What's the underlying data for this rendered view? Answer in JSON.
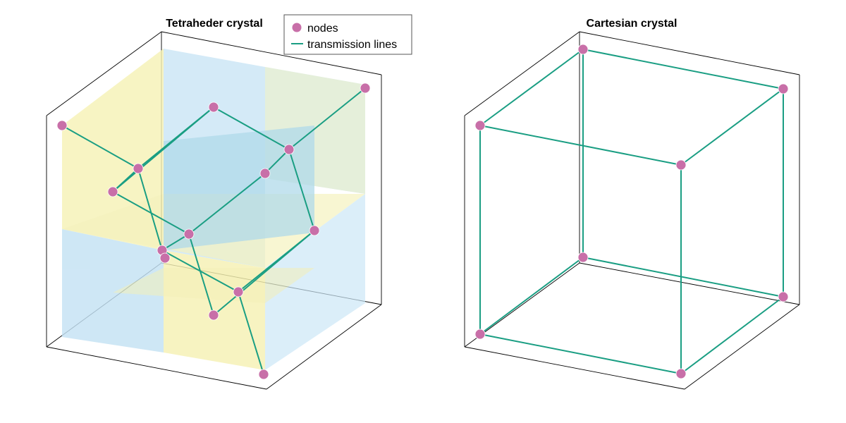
{
  "panels": [
    {
      "title": "Tetraheder crystal",
      "edges": [
        [
          0,
          1
        ],
        [
          1,
          2
        ],
        [
          2,
          3
        ],
        [
          0,
          7
        ],
        [
          1,
          6
        ],
        [
          2,
          9
        ],
        [
          3,
          4
        ],
        [
          4,
          5
        ],
        [
          5,
          6
        ],
        [
          5,
          11
        ],
        [
          6,
          7
        ],
        [
          7,
          8
        ],
        [
          8,
          9
        ],
        [
          9,
          10
        ],
        [
          10,
          11
        ],
        [
          11,
          12
        ],
        [
          12,
          13
        ],
        [
          10,
          14
        ],
        [
          13,
          14
        ],
        [
          8,
          15
        ],
        [
          6,
          16
        ],
        [
          15,
          16
        ]
      ]
    },
    {
      "title": "Cartesian crystal",
      "edges": [
        [
          0,
          1
        ],
        [
          0,
          2
        ],
        [
          1,
          3
        ],
        [
          2,
          3
        ],
        [
          4,
          5
        ],
        [
          4,
          6
        ],
        [
          5,
          7
        ],
        [
          6,
          7
        ],
        [
          0,
          4
        ],
        [
          1,
          5
        ],
        [
          2,
          6
        ],
        [
          3,
          7
        ]
      ]
    }
  ],
  "legend": {
    "nodes_label": "nodes",
    "lines_label": "transmission lines"
  },
  "colors": {
    "node": "#c86fa8",
    "line": "#1a9e83",
    "face_blue": "#c4e3f4",
    "face_yellow": "#f5f1b4",
    "frame": "#000000"
  }
}
